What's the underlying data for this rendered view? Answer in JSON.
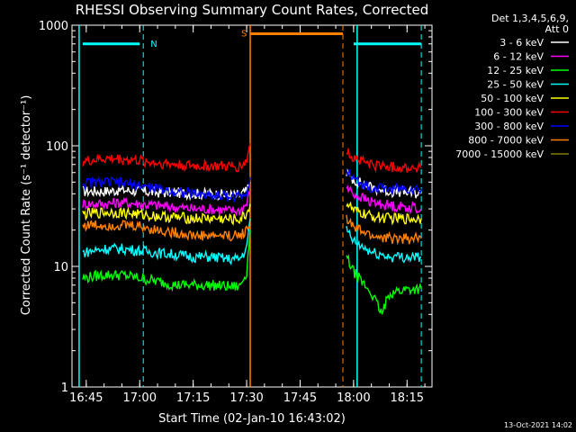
{
  "chart_data": {
    "type": "line",
    "title": "RHESSI Observing Summary Count Rates, Corrected",
    "xlabel": "Start Time (02-Jan-10 16:43:02)",
    "ylabel": "Corrected Count Rate (s⁻¹ detector⁻¹)",
    "y_scale": "log",
    "ylim": [
      1,
      1000
    ],
    "xlim": [
      "16:41",
      "18:22"
    ],
    "x_ticks": [
      "16:45",
      "17:00",
      "17:15",
      "17:30",
      "17:45",
      "18:00",
      "18:15"
    ],
    "y_ticks": [
      "1",
      "10",
      "100",
      "1000"
    ],
    "grid": false,
    "legend_position": "top-right",
    "legend_header": [
      "Det 1,3,4,5,6,9,",
      "Att 0"
    ],
    "footer_date": "13-Oct-2021 14:02",
    "series": [
      {
        "name": "3 - 6 keV",
        "color": "#ffffff",
        "segments": [
          {
            "t": [
              "16:44",
              "16:50",
              "16:55",
              "17:00",
              "17:05",
              "17:10",
              "17:15",
              "17:20",
              "17:25",
              "17:28",
              "17:30",
              "17:31"
            ],
            "y": [
              42,
              42,
              43,
              42,
              41,
              41,
              40,
              40,
              39,
              39,
              42,
              50
            ]
          },
          {
            "t": [
              "17:58",
              "18:00",
              "18:05",
              "18:10",
              "18:15",
              "18:19"
            ],
            "y": [
              60,
              52,
              45,
              42,
              41,
              40
            ]
          }
        ]
      },
      {
        "name": "6 - 12 keV",
        "color": "#ff00ff",
        "segments": [
          {
            "t": [
              "16:44",
              "16:50",
              "16:55",
              "17:00",
              "17:05",
              "17:10",
              "17:15",
              "17:20",
              "17:25",
              "17:28",
              "17:30",
              "17:31"
            ],
            "y": [
              33,
              33,
              34,
              33,
              32,
              31,
              30,
              30,
              29,
              29,
              33,
              42
            ]
          },
          {
            "t": [
              "17:58",
              "18:00",
              "18:05",
              "18:10",
              "18:15",
              "18:19"
            ],
            "y": [
              45,
              40,
              34,
              32,
              31,
              30
            ]
          }
        ]
      },
      {
        "name": "12 - 25 keV",
        "color": "#00ff00",
        "segments": [
          {
            "t": [
              "16:44",
              "16:50",
              "16:55",
              "17:00",
              "17:05",
              "17:10",
              "17:15",
              "17:20",
              "17:25",
              "17:28",
              "17:30",
              "17:31"
            ],
            "y": [
              8,
              8.5,
              8.5,
              8,
              7.5,
              7,
              7,
              7,
              6.8,
              6.8,
              9,
              20
            ]
          },
          {
            "t": [
              "17:58",
              "18:00",
              "18:05",
              "18:08",
              "18:10",
              "18:15",
              "18:19"
            ],
            "y": [
              12,
              9,
              6,
              4,
              6,
              6.5,
              6.5
            ]
          }
        ]
      },
      {
        "name": "25 - 50 keV",
        "color": "#00ffff",
        "segments": [
          {
            "t": [
              "16:44",
              "16:50",
              "16:55",
              "17:00",
              "17:05",
              "17:10",
              "17:15",
              "17:20",
              "17:25",
              "17:28",
              "17:30",
              "17:31"
            ],
            "y": [
              13,
              14,
              14,
              13.5,
              13,
              12.5,
              12,
              12,
              11.5,
              11.5,
              14,
              25
            ]
          },
          {
            "t": [
              "17:58",
              "18:00",
              "18:05",
              "18:10",
              "18:15",
              "18:19"
            ],
            "y": [
              20,
              16,
              13,
              12,
              12,
              12
            ]
          }
        ]
      },
      {
        "name": "50 - 100 keV",
        "color": "#ffff00",
        "segments": [
          {
            "t": [
              "16:44",
              "16:50",
              "16:55",
              "17:00",
              "17:05",
              "17:10",
              "17:15",
              "17:20",
              "17:25",
              "17:28",
              "17:30",
              "17:31"
            ],
            "y": [
              27,
              28,
              28,
              27,
              26,
              25.5,
              25,
              25,
              24.5,
              24.5,
              27,
              33
            ]
          },
          {
            "t": [
              "17:58",
              "18:00",
              "18:05",
              "18:10",
              "18:15",
              "18:19"
            ],
            "y": [
              34,
              29,
              26,
              25,
              25,
              25
            ]
          }
        ]
      },
      {
        "name": "100 - 300 keV",
        "color": "#ff0000",
        "segments": [
          {
            "t": [
              "16:44",
              "16:50",
              "16:55",
              "17:00",
              "17:05",
              "17:10",
              "17:15",
              "17:20",
              "17:25",
              "17:28",
              "17:30",
              "17:31"
            ],
            "y": [
              74,
              78,
              78,
              75,
              72,
              70,
              68,
              68,
              67,
              67,
              75,
              105
            ]
          },
          {
            "t": [
              "17:58",
              "18:00",
              "18:05",
              "18:10",
              "18:15",
              "18:19"
            ],
            "y": [
              90,
              80,
              70,
              67,
              66,
              66
            ]
          }
        ]
      },
      {
        "name": "300 - 800 keV",
        "color": "#0000ff",
        "segments": [
          {
            "t": [
              "16:44",
              "16:50",
              "16:55",
              "17:00",
              "17:05",
              "17:10",
              "17:15",
              "17:20",
              "17:25",
              "17:28",
              "17:30",
              "17:31"
            ],
            "y": [
              49,
              50,
              49,
              47,
              44,
              42,
              40,
              39,
              38,
              38,
              42,
              55
            ]
          },
          {
            "t": [
              "17:58",
              "18:00",
              "18:05",
              "18:10",
              "18:15",
              "18:19"
            ],
            "y": [
              62,
              52,
              45,
              44,
              44,
              44
            ]
          }
        ]
      },
      {
        "name": "800 - 7000 keV",
        "color": "#ff8000",
        "segments": [
          {
            "t": [
              "16:44",
              "16:50",
              "16:55",
              "17:00",
              "17:05",
              "17:10",
              "17:15",
              "17:20",
              "17:25",
              "17:28",
              "17:30",
              "17:31"
            ],
            "y": [
              22,
              22,
              22,
              21.5,
              20,
              19,
              18,
              18,
              18,
              18,
              20,
              22
            ]
          },
          {
            "t": [
              "17:58",
              "18:00",
              "18:05",
              "18:10",
              "18:15",
              "18:19"
            ],
            "y": [
              25,
              21,
              18,
              17,
              17,
              17
            ]
          }
        ]
      },
      {
        "name": "7000 - 15000 keV",
        "color": "#808000",
        "segments": []
      }
    ],
    "annotations": [
      {
        "label": "N",
        "color": "#00ffff",
        "bar_from": "16:44",
        "bar_to": "17:00",
        "y": 700,
        "dashed_at": "17:01",
        "solid_at": "16:43"
      },
      {
        "label": "",
        "color": "#00ffff",
        "bar_from": "18:00",
        "bar_to": "18:19",
        "y": 700,
        "dashed_at": "18:19",
        "solid_at": "18:01"
      },
      {
        "label": "S",
        "color": "#ff8000",
        "bar_from": "17:31",
        "bar_to": "17:57",
        "y": 850,
        "dashed_at": "17:57",
        "solid_at": "17:31"
      }
    ]
  }
}
